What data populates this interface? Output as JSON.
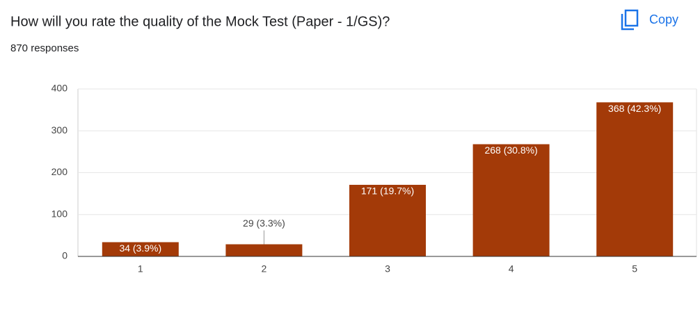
{
  "chart_data": {
    "type": "bar",
    "title": "How will you rate the quality of the Mock Test (Paper - 1/GS)?",
    "subtitle": "870 responses",
    "categories": [
      "1",
      "2",
      "3",
      "4",
      "5"
    ],
    "values": [
      34,
      29,
      171,
      268,
      368
    ],
    "value_labels": [
      "34 (3.9%)",
      "29 (3.3%)",
      "171 (19.7%)",
      "268 (30.8%)",
      "368 (42.3%)"
    ],
    "color": "#a33a08",
    "ylim": [
      0,
      400
    ],
    "yticks": [
      0,
      100,
      200,
      300,
      400
    ],
    "grid": true
  },
  "copy_button": "Copy"
}
